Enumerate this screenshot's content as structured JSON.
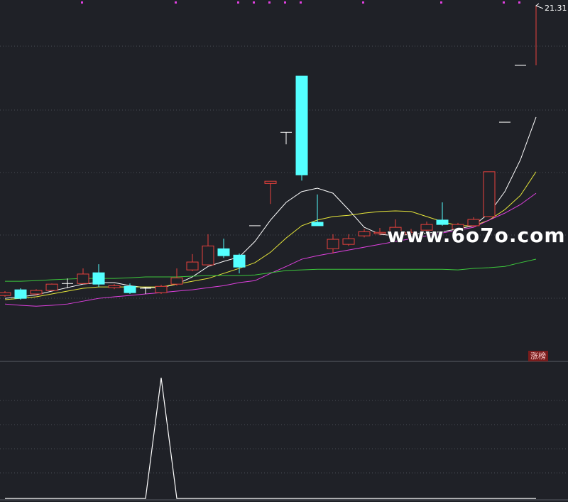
{
  "watermark": "www.6o7o.com",
  "chart_data": [
    {
      "type": "candlestick",
      "ylim": [
        10.2,
        21.31
      ],
      "up_color": "#e8413c",
      "down_color": "#54ffff",
      "flat_color": "#ffffff",
      "open": [
        12.13,
        12.31,
        12.18,
        12.29,
        12.51,
        12.51,
        12.85,
        12.38,
        12.42,
        12.36,
        12.22,
        12.49,
        12.94,
        13.1,
        13.61,
        13.41,
        14.34,
        15.68,
        17.3,
        19.08,
        14.45,
        13.61,
        13.75,
        14.02,
        14.09,
        14.02,
        14.07,
        14.2,
        14.52,
        14.24,
        14.34,
        14.63,
        17.62,
        19.42,
        19.42
      ],
      "high": [
        12.27,
        12.36,
        12.33,
        12.51,
        12.67,
        12.99,
        13.12,
        12.49,
        12.51,
        12.4,
        12.47,
        12.99,
        13.44,
        14.07,
        13.93,
        13.46,
        14.34,
        15.75,
        17.3,
        19.08,
        15.33,
        14.07,
        14.07,
        14.24,
        14.27,
        14.54,
        14.24,
        14.47,
        15.08,
        14.43,
        14.61,
        16.05,
        17.62,
        19.42,
        21.31
      ],
      "low": [
        12.09,
        12.0,
        12.13,
        12.27,
        12.36,
        12.49,
        12.4,
        12.33,
        12.18,
        12.18,
        12.18,
        12.44,
        12.9,
        13.08,
        13.32,
        12.83,
        14.34,
        15.03,
        16.92,
        15.77,
        14.34,
        13.46,
        13.7,
        13.97,
        14.04,
        13.97,
        14.02,
        14.15,
        14.34,
        14.2,
        14.29,
        14.61,
        17.62,
        19.42,
        19.42
      ],
      "close": [
        12.22,
        12.04,
        12.29,
        12.49,
        12.51,
        12.81,
        12.49,
        12.44,
        12.22,
        12.36,
        12.42,
        12.69,
        13.19,
        13.7,
        13.39,
        13.03,
        14.34,
        15.75,
        17.3,
        15.95,
        14.34,
        13.91,
        13.93,
        14.15,
        14.13,
        14.29,
        14.13,
        14.38,
        14.38,
        14.38,
        14.54,
        16.05,
        17.62,
        19.42,
        21.31
      ],
      "series": [
        {
          "color": "#ffffff",
          "values": [
            12.04,
            12.09,
            12.15,
            12.27,
            12.38,
            12.49,
            12.54,
            12.54,
            12.44,
            12.38,
            12.38,
            12.49,
            12.72,
            13.05,
            13.21,
            13.35,
            13.84,
            14.52,
            15.08,
            15.42,
            15.53,
            15.37,
            14.85,
            14.29,
            14.07,
            14.02,
            14.07,
            14.11,
            14.15,
            14.24,
            14.34,
            14.74,
            15.42,
            16.43,
            17.78
          ]
        },
        {
          "color": "#e8e83a",
          "values": [
            12.0,
            12.04,
            12.09,
            12.18,
            12.27,
            12.36,
            12.4,
            12.4,
            12.4,
            12.4,
            12.4,
            12.49,
            12.58,
            12.67,
            12.83,
            12.99,
            13.17,
            13.5,
            13.95,
            14.34,
            14.52,
            14.63,
            14.67,
            14.74,
            14.79,
            14.81,
            14.79,
            14.63,
            14.47,
            14.34,
            14.34,
            14.52,
            14.85,
            15.3,
            16.05
          ]
        },
        {
          "color": "#e040e0",
          "values": [
            11.86,
            11.82,
            11.79,
            11.82,
            11.86,
            11.95,
            12.04,
            12.09,
            12.13,
            12.18,
            12.22,
            12.27,
            12.31,
            12.38,
            12.44,
            12.54,
            12.6,
            12.83,
            13.05,
            13.28,
            13.39,
            13.48,
            13.57,
            13.66,
            13.75,
            13.84,
            13.93,
            14.02,
            14.11,
            14.2,
            14.29,
            14.52,
            14.74,
            15.01,
            15.37
          ]
        },
        {
          "color": "#3cc83c",
          "values": [
            12.58,
            12.58,
            12.6,
            12.63,
            12.65,
            12.67,
            12.67,
            12.67,
            12.69,
            12.72,
            12.72,
            12.72,
            12.74,
            12.76,
            12.76,
            12.76,
            12.78,
            12.85,
            12.92,
            12.94,
            12.96,
            12.96,
            12.96,
            12.96,
            12.96,
            12.96,
            12.96,
            12.96,
            12.96,
            12.94,
            12.99,
            13.01,
            13.05,
            13.17,
            13.28
          ]
        }
      ],
      "annotations": [
        {
          "value": 21.31,
          "label": "21.31"
        }
      ]
    },
    {
      "type": "line",
      "ylim": [
        0,
        1
      ],
      "series": [
        {
          "name": "涨榜",
          "color": "#ffffff",
          "values": [
            0,
            0,
            0,
            0,
            0,
            0,
            0,
            0,
            0,
            0,
            1,
            0,
            0,
            0,
            0,
            0,
            0,
            0,
            0,
            0,
            0,
            0,
            0,
            0,
            0,
            0,
            0,
            0,
            0,
            0,
            0,
            0,
            0,
            0,
            0
          ]
        }
      ]
    }
  ]
}
